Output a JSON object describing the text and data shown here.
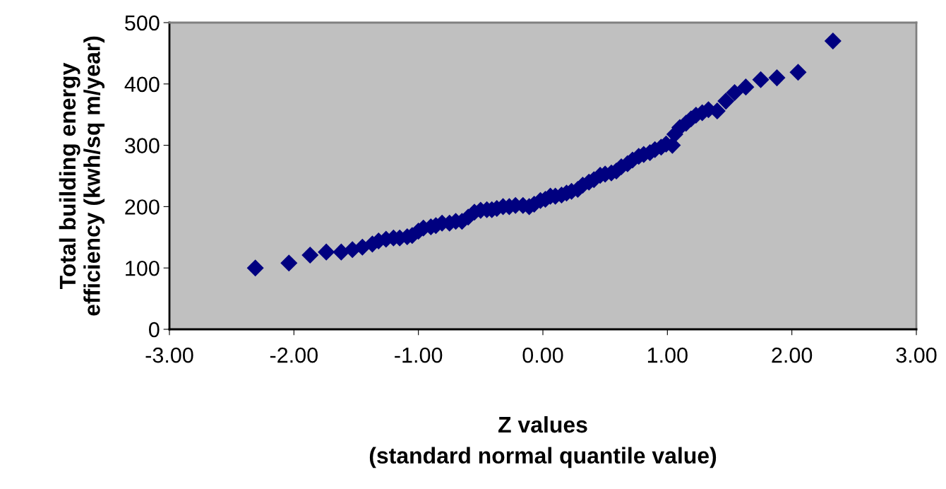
{
  "chart_data": {
    "type": "scatter",
    "xlabel": "Z values\n(standard normal quantile value)",
    "ylabel": "Total building energy\nefficiency (kwh/sq m/year)",
    "marker": "diamond",
    "grid": false,
    "xlim": [
      -3,
      3
    ],
    "xticks": [
      {
        "value": -3,
        "label": "-3.00"
      },
      {
        "value": -2,
        "label": "-2.00"
      },
      {
        "value": -1,
        "label": "-1.00"
      },
      {
        "value": 0,
        "label": "0.00"
      },
      {
        "value": 1,
        "label": "1.00"
      },
      {
        "value": 2,
        "label": "2.00"
      },
      {
        "value": 3,
        "label": "3.00"
      }
    ],
    "ylim": [
      0,
      500
    ],
    "yticks": [
      0,
      100,
      200,
      300,
      400,
      500
    ],
    "series": [
      {
        "color": "#000080",
        "x": [
          -2.31,
          -2.04,
          -1.87,
          -1.74,
          -1.62,
          -1.53,
          -1.45,
          -1.37,
          -1.32,
          -1.26,
          -1.2,
          -1.15,
          -1.09,
          -1.05,
          -1.0,
          -0.96,
          -0.9,
          -0.86,
          -0.81,
          -0.75,
          -0.7,
          -0.65,
          -0.6,
          -0.55,
          -0.5,
          -0.45,
          -0.41,
          -0.37,
          -0.32,
          -0.27,
          -0.22,
          -0.16,
          -0.11,
          -0.07,
          -0.02,
          0.02,
          0.06,
          0.1,
          0.15,
          0.19,
          0.23,
          0.28,
          0.32,
          0.37,
          0.41,
          0.46,
          0.5,
          0.55,
          0.59,
          0.63,
          0.68,
          0.72,
          0.77,
          0.81,
          0.86,
          0.9,
          0.95,
          0.99,
          1.04,
          1.06,
          1.1,
          1.15,
          1.19,
          1.23,
          1.28,
          1.33,
          1.4,
          1.47,
          1.54,
          1.63,
          1.75,
          1.88,
          2.05,
          2.33
        ],
        "values": [
          100,
          108,
          121,
          126,
          126,
          130,
          134,
          139,
          144,
          147,
          149,
          149,
          151,
          153,
          160,
          165,
          167,
          169,
          173,
          173,
          176,
          176,
          183,
          191,
          194,
          195,
          195,
          197,
          200,
          200,
          202,
          202,
          200,
          204,
          210,
          212,
          217,
          217,
          219,
          222,
          225,
          228,
          235,
          240,
          244,
          251,
          253,
          255,
          258,
          265,
          270,
          276,
          282,
          285,
          288,
          293,
          297,
          302,
          300,
          318,
          329,
          336,
          343,
          349,
          353,
          358,
          356,
          372,
          386,
          395,
          407,
          410,
          419,
          470
        ]
      }
    ]
  }
}
